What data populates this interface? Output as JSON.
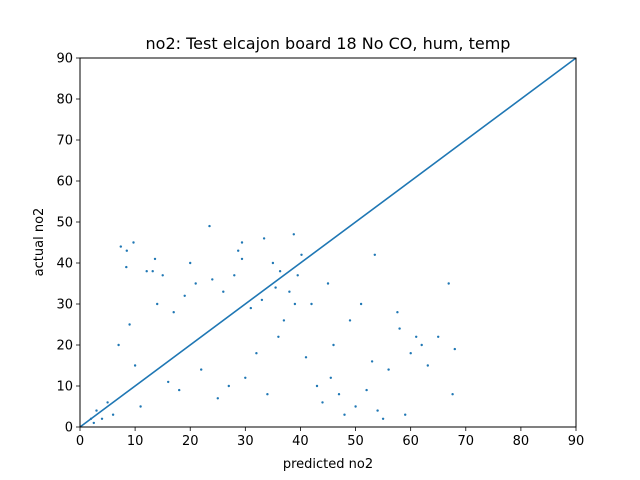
{
  "chart_data": {
    "type": "scatter",
    "title": "no2: Test elcajon board 18 No CO, hum, temp",
    "xlabel": "predicted no2",
    "ylabel": "actual no2",
    "xlim": [
      0,
      90
    ],
    "ylim": [
      0,
      90
    ],
    "xticks": [
      0,
      10,
      20,
      30,
      40,
      50,
      60,
      70,
      80,
      90
    ],
    "yticks": [
      0,
      10,
      20,
      30,
      40,
      50,
      60,
      70,
      80,
      90
    ],
    "grid": false,
    "legend": "none",
    "color": "#1f77b4",
    "series": [
      {
        "kind": "reference-line",
        "x": [
          0,
          90
        ],
        "y": [
          0,
          90
        ]
      },
      {
        "kind": "points",
        "x": [
          23.5,
          9.7,
          38.8,
          29.4,
          33.4,
          66.9,
          7.4,
          63.1,
          28.7,
          13.6,
          29.4,
          40.2,
          13.2,
          20.0,
          8.5,
          12.1,
          15.0,
          53.5,
          8.4,
          35.0,
          57.6,
          36.3,
          39.5,
          45.0,
          51.0,
          65.0,
          68.0,
          62.0,
          58.0,
          61.0,
          67.6,
          60.0,
          56.0,
          53.0,
          49.0,
          46.0,
          45.5,
          42.0,
          41.0,
          38.0,
          36.0,
          34.0,
          32.0,
          30.0,
          27.0,
          25.0,
          22.0,
          18.0,
          16.0,
          11.0,
          6.0,
          5.0,
          4.0,
          3.0,
          2.5,
          2.0,
          7.0,
          9.0,
          10.0,
          14.0,
          17.0,
          19.0,
          21.0,
          24.0,
          26.0,
          28.0,
          31.0,
          33.0,
          35.5,
          37.0,
          39.0,
          43.0,
          44.0,
          47.0,
          48.0,
          50.0,
          52.0,
          54.0,
          55.0,
          59.0
        ],
        "y": [
          49,
          45,
          47,
          45,
          46,
          35,
          44,
          15,
          43,
          41,
          41,
          42,
          38,
          40,
          43,
          38,
          37,
          42,
          39,
          40,
          28,
          38,
          37,
          35,
          30,
          22,
          19,
          20,
          24,
          22,
          8,
          18,
          14,
          16,
          26,
          20,
          12,
          30,
          17,
          33,
          22,
          8,
          18,
          12,
          10,
          7,
          14,
          9,
          11,
          5,
          3,
          6,
          2,
          4,
          1,
          2,
          20,
          25,
          15,
          30,
          28,
          32,
          35,
          36,
          33,
          37,
          29,
          31,
          34,
          26,
          30,
          10,
          6,
          8,
          3,
          5,
          9,
          4,
          2,
          3
        ]
      }
    ]
  }
}
